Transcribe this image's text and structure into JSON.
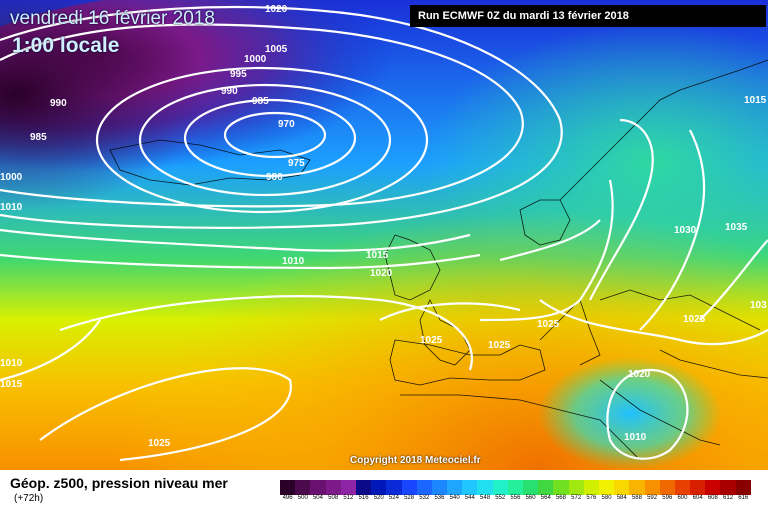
{
  "header": {
    "date": "vendredi 16 février 2018",
    "time": "1:00 locale",
    "run": "Run ECMWF 0Z du mardi 13 février 2018"
  },
  "copyright": "Copyright 2018 Meteociel.fr",
  "footer": {
    "title": "Géop. z500, pression niveau mer",
    "subtitle": "(+72h)"
  },
  "isobar_labels": [
    "1020",
    "1005",
    "1000",
    "995",
    "990",
    "985",
    "990",
    "985",
    "970",
    "975",
    "980",
    "1000",
    "1010",
    "1015",
    "1020",
    "1010",
    "1015",
    "1025",
    "1025",
    "1025",
    "1025",
    "1025",
    "1030",
    "1035",
    "103",
    "1020",
    "1010",
    "1010",
    "1015"
  ],
  "legend": {
    "colors": [
      "#2a0028",
      "#4b0a4b",
      "#6a1070",
      "#7c1a8a",
      "#8e24a6",
      "#0a0a8a",
      "#0018b8",
      "#0a2ad8",
      "#1846ff",
      "#1a66ff",
      "#1c86ff",
      "#1ea6ff",
      "#20c6ff",
      "#20e0f0",
      "#22f0c8",
      "#24f09c",
      "#28e070",
      "#40d840",
      "#70e020",
      "#a0e810",
      "#d0f000",
      "#f0f000",
      "#f8d800",
      "#f8b400",
      "#f89000",
      "#f06800",
      "#e84000",
      "#d82000",
      "#c80000",
      "#a80000",
      "#880000",
      "#600000",
      "#400000"
    ],
    "labels": [
      "496",
      "500",
      "504",
      "508",
      "512",
      "516",
      "520",
      "524",
      "528",
      "532",
      "536",
      "540",
      "544",
      "548",
      "552",
      "556",
      "560",
      "564",
      "568",
      "572",
      "576",
      "580",
      "584",
      "588",
      "592",
      "596",
      "600",
      "604",
      "608",
      "612",
      "616"
    ]
  }
}
